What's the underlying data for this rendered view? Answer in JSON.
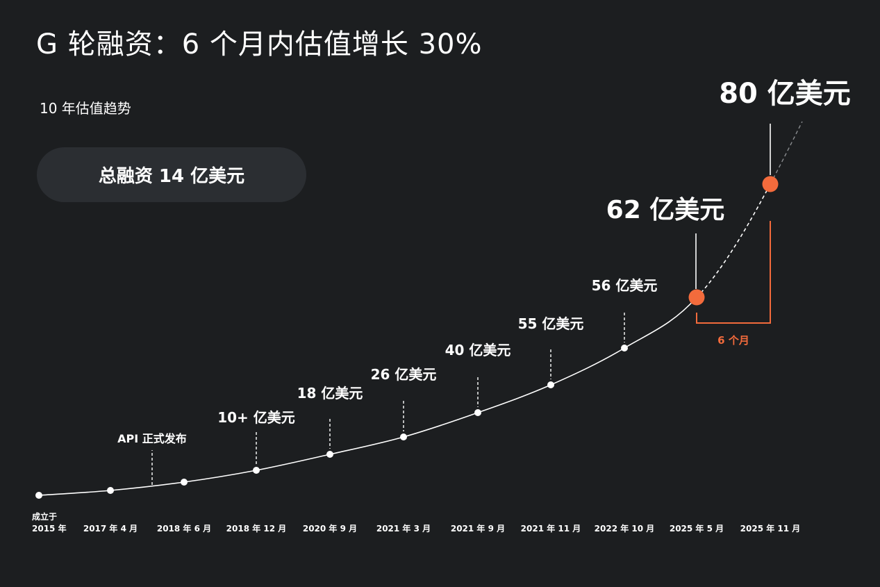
{
  "title": "G 轮融资：6 个月内估值增长 30%",
  "subtitle": "10 年估值趋势",
  "total_funding": "总融资 14 亿美元",
  "accent_color": "#f36b3c",
  "chart_data": {
    "type": "line",
    "title": "G 轮融资：6 个月内估值增长 30%",
    "subtitle": "10 年估值趋势",
    "unit": "亿美元",
    "categories": [
      "成立于\n2015 年",
      "2017 年 4 月",
      "2018 年 6 月",
      "2018 年 12 月",
      "2020 年 9 月",
      "2021 年 3 月",
      "2021 年 9 月",
      "2021 年 11 月",
      "2022 年 10 月",
      "2025 年 5 月",
      "2025 年 11 月"
    ],
    "value_labels": [
      "",
      "",
      "",
      "10+ 亿美元",
      "18 亿美元",
      "26 亿美元",
      "40 亿美元",
      "55 亿美元",
      "56 亿美元",
      "62 亿美元",
      "80 亿美元"
    ],
    "values": [
      null,
      null,
      null,
      10,
      18,
      26,
      40,
      55,
      56,
      62,
      80
    ],
    "milestone": {
      "label": "API 正式发布",
      "between": [
        "2017 年 4 月",
        "2018 年 6 月"
      ]
    },
    "highlight": {
      "from": "2025 年 5 月",
      "to": "2025 年 11 月",
      "label": "6 个月"
    }
  }
}
